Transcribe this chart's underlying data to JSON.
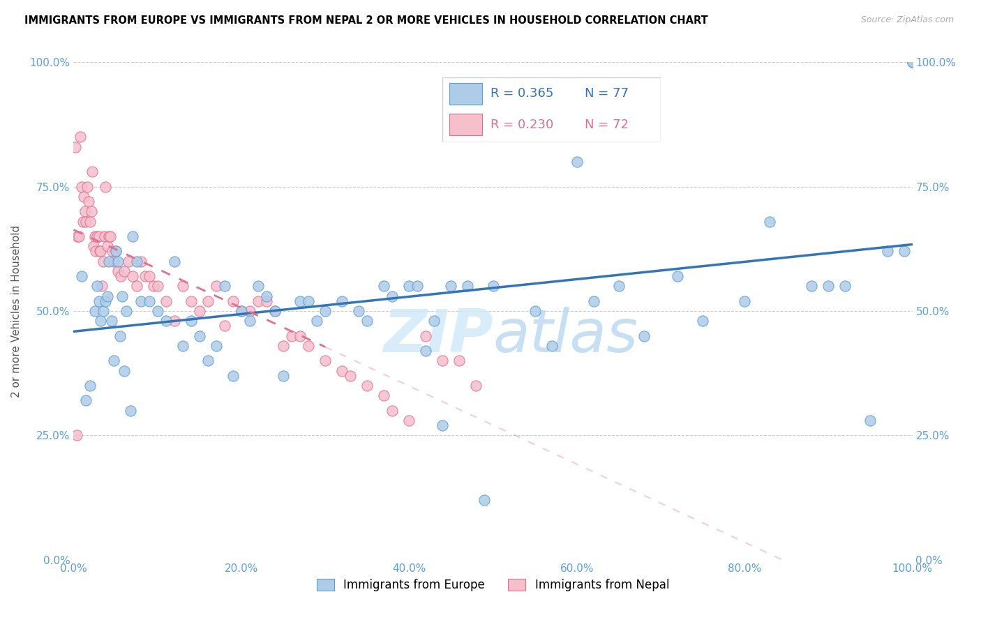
{
  "title": "IMMIGRANTS FROM EUROPE VS IMMIGRANTS FROM NEPAL 2 OR MORE VEHICLES IN HOUSEHOLD CORRELATION CHART",
  "source": "Source: ZipAtlas.com",
  "ylabel": "2 or more Vehicles in Household",
  "legend_europe": "Immigrants from Europe",
  "legend_nepal": "Immigrants from Nepal",
  "R_europe": "0.365",
  "N_europe": "77",
  "R_nepal": "0.230",
  "N_nepal": "72",
  "europe_color": "#aecce8",
  "europe_edge": "#5a9fd4",
  "nepal_color": "#f5bfcc",
  "nepal_edge": "#e07090",
  "europe_line_color": "#3474b7",
  "nepal_line_color": "#e07090",
  "watermark_color": "#d0e8f8",
  "xlim": [
    0,
    100
  ],
  "ylim": [
    0,
    100
  ],
  "europe_x": [
    1.0,
    1.5,
    2.0,
    2.5,
    2.8,
    3.0,
    3.2,
    3.5,
    3.8,
    4.0,
    4.2,
    4.5,
    4.8,
    5.0,
    5.3,
    5.5,
    5.8,
    6.0,
    6.3,
    6.8,
    7.0,
    7.5,
    8.0,
    9.0,
    10.0,
    11.0,
    12.0,
    13.0,
    14.0,
    15.0,
    16.0,
    17.0,
    18.0,
    19.0,
    20.0,
    21.0,
    22.0,
    23.0,
    24.0,
    25.0,
    27.0,
    28.0,
    29.0,
    30.0,
    32.0,
    34.0,
    35.0,
    37.0,
    38.0,
    40.0,
    41.0,
    42.0,
    43.0,
    44.0,
    45.0,
    47.0,
    49.0,
    50.0,
    55.0,
    57.0,
    60.0,
    62.0,
    65.0,
    68.0,
    72.0,
    75.0,
    80.0,
    83.0,
    88.0,
    90.0,
    92.0,
    95.0,
    97.0,
    99.0,
    100.0,
    100.0,
    100.0
  ],
  "europe_y": [
    57.0,
    32.0,
    35.0,
    50.0,
    55.0,
    52.0,
    48.0,
    50.0,
    52.0,
    53.0,
    60.0,
    48.0,
    40.0,
    62.0,
    60.0,
    45.0,
    53.0,
    38.0,
    50.0,
    30.0,
    65.0,
    60.0,
    52.0,
    52.0,
    50.0,
    48.0,
    60.0,
    43.0,
    48.0,
    45.0,
    40.0,
    43.0,
    55.0,
    37.0,
    50.0,
    48.0,
    55.0,
    53.0,
    50.0,
    37.0,
    52.0,
    52.0,
    48.0,
    50.0,
    52.0,
    50.0,
    48.0,
    55.0,
    53.0,
    55.0,
    55.0,
    42.0,
    48.0,
    27.0,
    55.0,
    55.0,
    12.0,
    55.0,
    50.0,
    43.0,
    80.0,
    52.0,
    55.0,
    45.0,
    57.0,
    48.0,
    52.0,
    68.0,
    55.0,
    55.0,
    55.0,
    28.0,
    62.0,
    62.0,
    100.0,
    100.0,
    100.0
  ],
  "nepal_x": [
    0.2,
    0.4,
    0.5,
    0.6,
    0.8,
    1.0,
    1.1,
    1.2,
    1.4,
    1.5,
    1.6,
    1.8,
    2.0,
    2.1,
    2.2,
    2.4,
    2.5,
    2.6,
    2.8,
    3.0,
    3.1,
    3.2,
    3.4,
    3.5,
    3.7,
    3.8,
    4.0,
    4.2,
    4.4,
    4.6,
    4.8,
    5.0,
    5.3,
    5.6,
    6.0,
    6.5,
    7.0,
    7.5,
    8.0,
    8.5,
    9.0,
    9.5,
    10.0,
    11.0,
    12.0,
    13.0,
    14.0,
    15.0,
    16.0,
    17.0,
    18.0,
    19.0,
    20.0,
    21.0,
    22.0,
    23.0,
    24.0,
    25.0,
    26.0,
    27.0,
    28.0,
    30.0,
    32.0,
    33.0,
    35.0,
    37.0,
    38.0,
    40.0,
    42.0,
    44.0,
    46.0,
    48.0
  ],
  "nepal_y": [
    83.0,
    25.0,
    65.0,
    65.0,
    85.0,
    75.0,
    68.0,
    73.0,
    70.0,
    68.0,
    75.0,
    72.0,
    68.0,
    70.0,
    78.0,
    63.0,
    65.0,
    62.0,
    65.0,
    65.0,
    62.0,
    62.0,
    55.0,
    60.0,
    65.0,
    75.0,
    63.0,
    65.0,
    65.0,
    62.0,
    60.0,
    62.0,
    58.0,
    57.0,
    58.0,
    60.0,
    57.0,
    55.0,
    60.0,
    57.0,
    57.0,
    55.0,
    55.0,
    52.0,
    48.0,
    55.0,
    52.0,
    50.0,
    52.0,
    55.0,
    47.0,
    52.0,
    50.0,
    50.0,
    52.0,
    52.0,
    50.0,
    43.0,
    45.0,
    45.0,
    43.0,
    40.0,
    38.0,
    37.0,
    35.0,
    33.0,
    30.0,
    28.0,
    45.0,
    40.0,
    40.0,
    35.0
  ]
}
